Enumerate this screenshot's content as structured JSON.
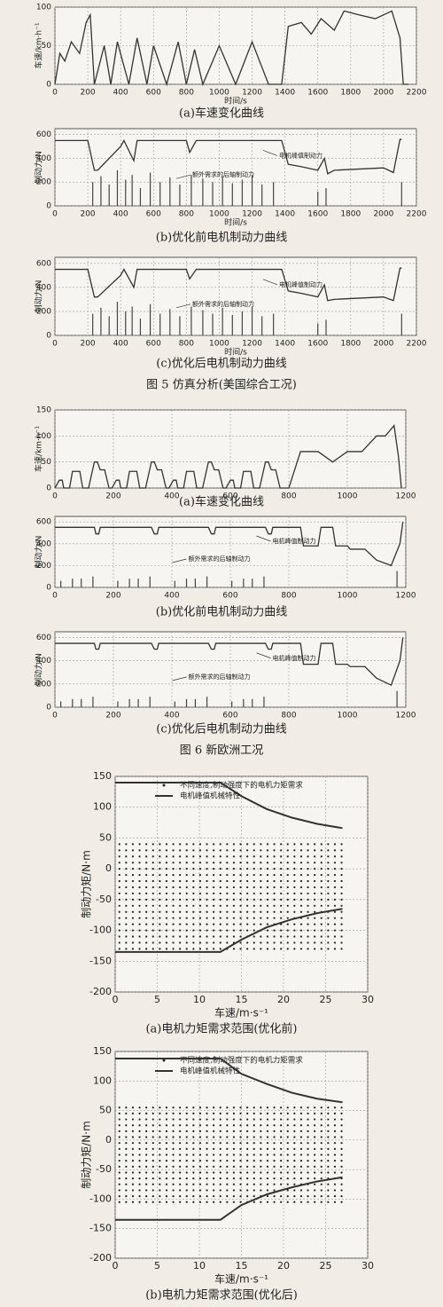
{
  "chart_data": [
    {
      "type": "line",
      "title": "(a)车速变化曲线",
      "ylabel": "车速/km·h⁻¹",
      "xlabel": "时间/s",
      "xlim": [
        0,
        2200
      ],
      "xticks": [
        0,
        200,
        400,
        600,
        800,
        1000,
        1200,
        1400,
        1600,
        1800,
        2000,
        2200
      ],
      "ylim": [
        0,
        100
      ],
      "yticks": [
        0,
        50,
        100
      ],
      "grid": true,
      "series": [
        {
          "color": "#333333",
          "style": "line",
          "x": [
            0,
            30,
            60,
            100,
            150,
            190,
            215,
            240,
            300,
            340,
            380,
            450,
            500,
            560,
            600,
            680,
            750,
            800,
            850,
            900,
            1000,
            1100,
            1200,
            1300,
            1380,
            1420,
            1500,
            1560,
            1620,
            1700,
            1760,
            1850,
            1950,
            2050,
            2100,
            2120,
            2150
          ],
          "values": [
            0,
            40,
            30,
            55,
            40,
            80,
            90,
            0,
            50,
            0,
            55,
            0,
            60,
            0,
            50,
            0,
            55,
            0,
            45,
            0,
            50,
            0,
            55,
            0,
            0,
            75,
            80,
            65,
            85,
            70,
            95,
            90,
            85,
            95,
            60,
            0,
            0
          ]
        }
      ]
    },
    {
      "type": "line",
      "title": "(b)优化前电机制动力曲线",
      "ylabel": "制动力/N",
      "xlabel": "时间/s",
      "xlim": [
        0,
        2200
      ],
      "xticks": [
        0,
        200,
        400,
        600,
        800,
        1000,
        1200,
        1400,
        1600,
        1800,
        2000,
        2200
      ],
      "ylim": [
        0,
        650
      ],
      "yticks": [
        0,
        200,
        400,
        600
      ],
      "grid": true,
      "series": [
        {
          "name": "电机峰值制动力",
          "color": "#333333",
          "style": "line",
          "x": [
            0,
            200,
            240,
            260,
            400,
            420,
            480,
            500,
            800,
            820,
            860,
            1380,
            1420,
            1500,
            1600,
            1640,
            1660,
            1700,
            2000,
            2060,
            2100,
            2110
          ],
          "values": [
            550,
            550,
            300,
            300,
            500,
            550,
            380,
            550,
            550,
            450,
            550,
            550,
            350,
            330,
            300,
            400,
            270,
            300,
            320,
            280,
            560,
            560
          ]
        },
        {
          "name": "额外需求的后轴制动力",
          "color": "#444444",
          "style": "stem",
          "x": [
            230,
            280,
            330,
            380,
            430,
            470,
            520,
            580,
            640,
            700,
            760,
            830,
            900,
            960,
            1020,
            1080,
            1140,
            1200,
            1260,
            1330,
            1600,
            1650,
            2110
          ],
          "values": [
            200,
            250,
            180,
            300,
            220,
            260,
            150,
            280,
            200,
            240,
            180,
            260,
            230,
            200,
            250,
            190,
            220,
            260,
            180,
            200,
            120,
            150,
            200
          ]
        }
      ]
    },
    {
      "type": "line",
      "title": "(c)优化后电机制动力曲线",
      "ylabel": "制动力/N",
      "xlabel": "时间/s",
      "xlim": [
        0,
        2200
      ],
      "xticks": [
        0,
        200,
        400,
        600,
        800,
        1000,
        1200,
        1400,
        1600,
        1800,
        2000,
        2200
      ],
      "ylim": [
        0,
        650
      ],
      "yticks": [
        0,
        200,
        400,
        600
      ],
      "grid": true,
      "series": [
        {
          "name": "电机峰值制动力",
          "color": "#333333",
          "style": "line",
          "x": [
            0,
            200,
            240,
            260,
            400,
            420,
            480,
            500,
            800,
            820,
            860,
            1380,
            1420,
            1500,
            1600,
            1640,
            1660,
            1700,
            2000,
            2060,
            2100,
            2110
          ],
          "values": [
            550,
            550,
            320,
            320,
            500,
            550,
            400,
            550,
            550,
            470,
            550,
            550,
            370,
            350,
            320,
            420,
            290,
            300,
            320,
            290,
            560,
            560
          ]
        },
        {
          "name": "额外需求的后轴制动力",
          "color": "#444444",
          "style": "stem",
          "x": [
            230,
            280,
            330,
            380,
            430,
            470,
            520,
            580,
            640,
            700,
            760,
            830,
            900,
            960,
            1020,
            1080,
            1140,
            1200,
            1260,
            1330,
            1600,
            1650,
            2110
          ],
          "values": [
            180,
            230,
            160,
            280,
            200,
            240,
            140,
            260,
            180,
            220,
            160,
            240,
            210,
            180,
            230,
            170,
            200,
            240,
            160,
            180,
            100,
            130,
            180
          ]
        }
      ]
    },
    {
      "type": "line",
      "title": "(a)车速变化曲线",
      "ylabel": "车速/km·h⁻¹",
      "xlim": [
        0,
        1200
      ],
      "xticks": [
        0,
        200,
        400,
        600,
        800,
        1000,
        1200
      ],
      "ylim": [
        0,
        150
      ],
      "yticks": [
        0,
        50,
        100,
        150
      ],
      "grid": true,
      "series": [
        {
          "color": "#333333",
          "style": "line",
          "x": [
            0,
            15,
            25,
            30,
            50,
            60,
            85,
            95,
            115,
            135,
            145,
            155,
            170,
            185,
            195,
            210,
            220,
            225,
            245,
            255,
            280,
            290,
            310,
            330,
            340,
            350,
            365,
            380,
            390,
            405,
            415,
            420,
            440,
            450,
            475,
            485,
            505,
            525,
            535,
            545,
            560,
            575,
            585,
            600,
            610,
            615,
            635,
            645,
            670,
            680,
            700,
            720,
            730,
            740,
            755,
            770,
            800,
            840,
            900,
            950,
            1000,
            1050,
            1100,
            1130,
            1160,
            1175,
            1185
          ],
          "values": [
            0,
            15,
            15,
            0,
            0,
            32,
            32,
            0,
            0,
            50,
            50,
            35,
            35,
            0,
            0,
            15,
            15,
            0,
            0,
            32,
            32,
            0,
            0,
            50,
            50,
            35,
            35,
            0,
            0,
            15,
            15,
            0,
            0,
            32,
            32,
            0,
            0,
            50,
            50,
            35,
            35,
            0,
            0,
            15,
            15,
            0,
            0,
            32,
            32,
            0,
            0,
            50,
            50,
            35,
            35,
            0,
            0,
            70,
            70,
            50,
            70,
            70,
            100,
            100,
            120,
            60,
            0
          ]
        }
      ]
    },
    {
      "type": "line",
      "title": "(b)优化前电机制动力曲线",
      "ylabel": "制动力/N",
      "xlim": [
        0,
        1200
      ],
      "xticks": [
        0,
        200,
        400,
        600,
        800,
        1000,
        1200
      ],
      "ylim": [
        0,
        650
      ],
      "yticks": [
        0,
        200,
        400,
        600
      ],
      "grid": true,
      "series": [
        {
          "name": "电机峰值制动力",
          "color": "#333333",
          "style": "line",
          "x": [
            0,
            135,
            140,
            150,
            155,
            330,
            340,
            350,
            355,
            525,
            535,
            545,
            550,
            720,
            730,
            740,
            745,
            840,
            850,
            900,
            910,
            950,
            960,
            1000,
            1010,
            1060,
            1100,
            1150,
            1180,
            1190
          ],
          "values": [
            550,
            550,
            490,
            490,
            550,
            550,
            490,
            490,
            550,
            550,
            490,
            490,
            550,
            550,
            490,
            490,
            550,
            550,
            380,
            380,
            550,
            550,
            380,
            380,
            350,
            350,
            250,
            200,
            400,
            600
          ]
        },
        {
          "name": "额外需求的后轴制动力",
          "color": "#444444",
          "style": "stem",
          "x": [
            20,
            60,
            90,
            130,
            215,
            255,
            285,
            325,
            410,
            450,
            480,
            520,
            605,
            645,
            675,
            715,
            1170
          ],
          "values": [
            60,
            80,
            80,
            100,
            60,
            80,
            80,
            100,
            60,
            80,
            80,
            100,
            60,
            80,
            80,
            100,
            150
          ]
        }
      ]
    },
    {
      "type": "line",
      "title": "(c)优化后电机制动力曲线",
      "ylabel": "制动力/N",
      "xlim": [
        0,
        1200
      ],
      "xticks": [
        0,
        200,
        400,
        600,
        800,
        1000,
        1200
      ],
      "ylim": [
        0,
        650
      ],
      "yticks": [
        0,
        200,
        400,
        600
      ],
      "grid": true,
      "series": [
        {
          "name": "电机峰值制动力",
          "color": "#333333",
          "style": "line",
          "x": [
            0,
            135,
            140,
            150,
            155,
            330,
            340,
            350,
            355,
            525,
            535,
            545,
            550,
            720,
            730,
            740,
            745,
            840,
            850,
            900,
            910,
            950,
            960,
            1000,
            1010,
            1060,
            1100,
            1150,
            1180,
            1190
          ],
          "values": [
            550,
            550,
            500,
            500,
            550,
            550,
            500,
            500,
            550,
            550,
            500,
            500,
            550,
            550,
            500,
            500,
            550,
            550,
            370,
            370,
            550,
            550,
            370,
            370,
            350,
            350,
            250,
            190,
            400,
            600
          ]
        },
        {
          "name": "额外需求的后轴制动力",
          "color": "#444444",
          "style": "stem",
          "x": [
            20,
            60,
            90,
            130,
            215,
            255,
            285,
            325,
            410,
            450,
            480,
            520,
            605,
            645,
            675,
            715,
            1170
          ],
          "values": [
            50,
            70,
            70,
            90,
            50,
            70,
            70,
            90,
            50,
            70,
            70,
            90,
            50,
            70,
            70,
            90,
            140
          ]
        }
      ]
    },
    {
      "type": "scatter",
      "title": "(a)电机力矩需求范围(优化前)",
      "ylabel": "制动力矩/N·m",
      "xlabel": "车速/m·s⁻¹",
      "xlim": [
        0,
        30
      ],
      "xticks": [
        0,
        5,
        10,
        15,
        20,
        25,
        30
      ],
      "ylim": [
        -200,
        150
      ],
      "yticks": [
        -200,
        -150,
        -100,
        -50,
        0,
        50,
        100,
        150
      ],
      "grid": true,
      "legend": "upper center",
      "series": [
        {
          "name": "不同速度,制动强度下的电机力矩需求",
          "color": "#222222",
          "style": "dots",
          "grid_x": [
            0.5,
            1.3,
            2.1,
            2.9,
            3.7,
            4.5,
            5.3,
            6.1,
            6.9,
            7.7,
            8.5,
            9.3,
            10.1,
            10.9,
            11.7,
            12.5,
            13.3,
            14.1,
            14.9,
            15.7,
            16.5,
            17.3,
            18.1,
            18.9,
            19.7,
            20.5,
            21.3,
            22.1,
            22.9,
            23.7,
            24.5,
            25.3,
            26.1,
            26.9
          ],
          "grid_y": [
            40,
            30,
            20,
            10,
            0,
            -10,
            -20,
            -30,
            -40,
            -50,
            -60,
            -70,
            -80,
            -90,
            -100,
            -110,
            -120,
            -130
          ]
        },
        {
          "name": "电机峰值机械特性",
          "color": "#333333",
          "style": "line",
          "x": [
            0,
            12.5,
            15,
            18,
            21,
            24,
            27,
            27,
            0,
            12.5,
            15,
            18,
            21,
            24,
            27
          ],
          "values": [
            140,
            140,
            118,
            97,
            83,
            73,
            66,
            null,
            -135,
            -135,
            -115,
            -95,
            -82,
            -72,
            -65
          ]
        }
      ]
    },
    {
      "type": "scatter",
      "title": "(b)电机力矩需求范围(优化后)",
      "ylabel": "制动力矩/N·m",
      "xlabel": "车速/m·s⁻¹",
      "xlim": [
        0,
        30
      ],
      "xticks": [
        0,
        5,
        10,
        15,
        20,
        25,
        30
      ],
      "ylim": [
        -200,
        150
      ],
      "yticks": [
        -200,
        -150,
        -100,
        -50,
        0,
        50,
        100,
        150
      ],
      "grid": true,
      "legend": "upper center",
      "series": [
        {
          "name": "不同速度,制动强度下的电机力矩需求",
          "color": "#222222",
          "style": "dots",
          "grid_x": [
            0.5,
            1.3,
            2.1,
            2.9,
            3.7,
            4.5,
            5.3,
            6.1,
            6.9,
            7.7,
            8.5,
            9.3,
            10.1,
            10.9,
            11.7,
            12.5,
            13.3,
            14.1,
            14.9,
            15.7,
            16.5,
            17.3,
            18.1,
            18.9,
            19.7,
            20.5,
            21.3,
            22.1,
            22.9,
            23.7,
            24.5,
            25.3,
            26.1,
            26.9
          ],
          "grid_y": [
            55,
            45,
            35,
            25,
            15,
            5,
            -5,
            -15,
            -25,
            -35,
            -45,
            -55,
            -65,
            -75,
            -85,
            -95,
            -105
          ]
        },
        {
          "name": "电机峰值机械特性",
          "color": "#333333",
          "style": "line",
          "x": [
            0,
            12.5,
            15,
            18,
            21,
            24,
            27,
            27,
            0,
            12.5,
            15,
            18,
            21,
            24,
            27
          ],
          "values": [
            138,
            138,
            112,
            95,
            80,
            70,
            64,
            null,
            -135,
            -135,
            -110,
            -92,
            -80,
            -70,
            -63
          ]
        }
      ]
    }
  ],
  "figure_captions": [
    "图 5  仿真分析(美国综合工况)",
    "图 6  新欧洲工况"
  ]
}
